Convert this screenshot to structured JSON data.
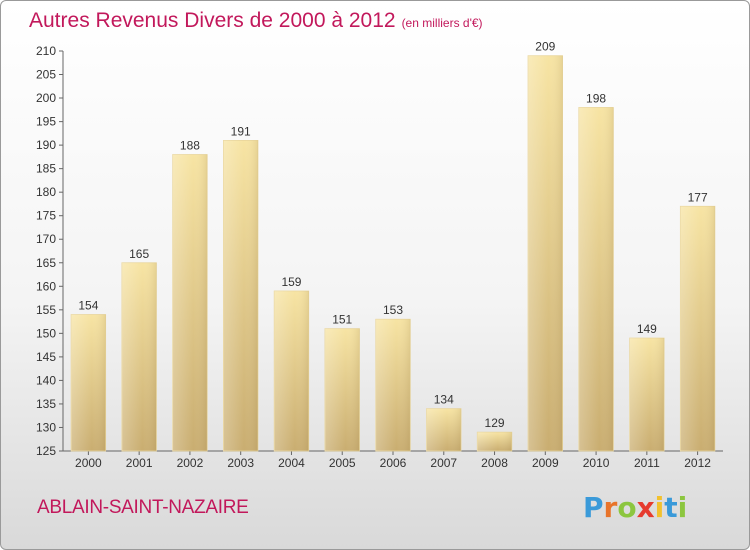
{
  "title": "Autres Revenus Divers de 2000 à 2012",
  "subtitle": "(en milliers d'€)",
  "commune": "ABLAIN-SAINT-NAZAIRE",
  "logo": {
    "letters": [
      "P",
      "r",
      "o",
      "x",
      "i",
      "t",
      "i"
    ],
    "colors": [
      "#3a9ad9",
      "#e8742a",
      "#8cc63f",
      "#e63b2e",
      "#f2c12e",
      "#3a9ad9",
      "#8cc63f"
    ]
  },
  "colors": {
    "bar_light": "#f7e4a3",
    "bar_dark": "#cdb276",
    "accent": "#c2185b"
  },
  "chart_data": {
    "type": "bar",
    "categories": [
      "2000",
      "2001",
      "2002",
      "2003",
      "2004",
      "2005",
      "2006",
      "2007",
      "2008",
      "2009",
      "2010",
      "2011",
      "2012"
    ],
    "values": [
      154,
      165,
      188,
      191,
      159,
      151,
      153,
      134,
      129,
      209,
      198,
      149,
      177
    ],
    "title": "Autres Revenus Divers de 2000 à 2012",
    "subtitle": "(en milliers d'€)",
    "xlabel": "",
    "ylabel": "",
    "ylim": [
      125,
      210
    ],
    "yticks": [
      125,
      130,
      135,
      140,
      145,
      150,
      155,
      160,
      165,
      170,
      175,
      180,
      185,
      190,
      195,
      200,
      205,
      210
    ],
    "grid": false,
    "legend": "none"
  }
}
